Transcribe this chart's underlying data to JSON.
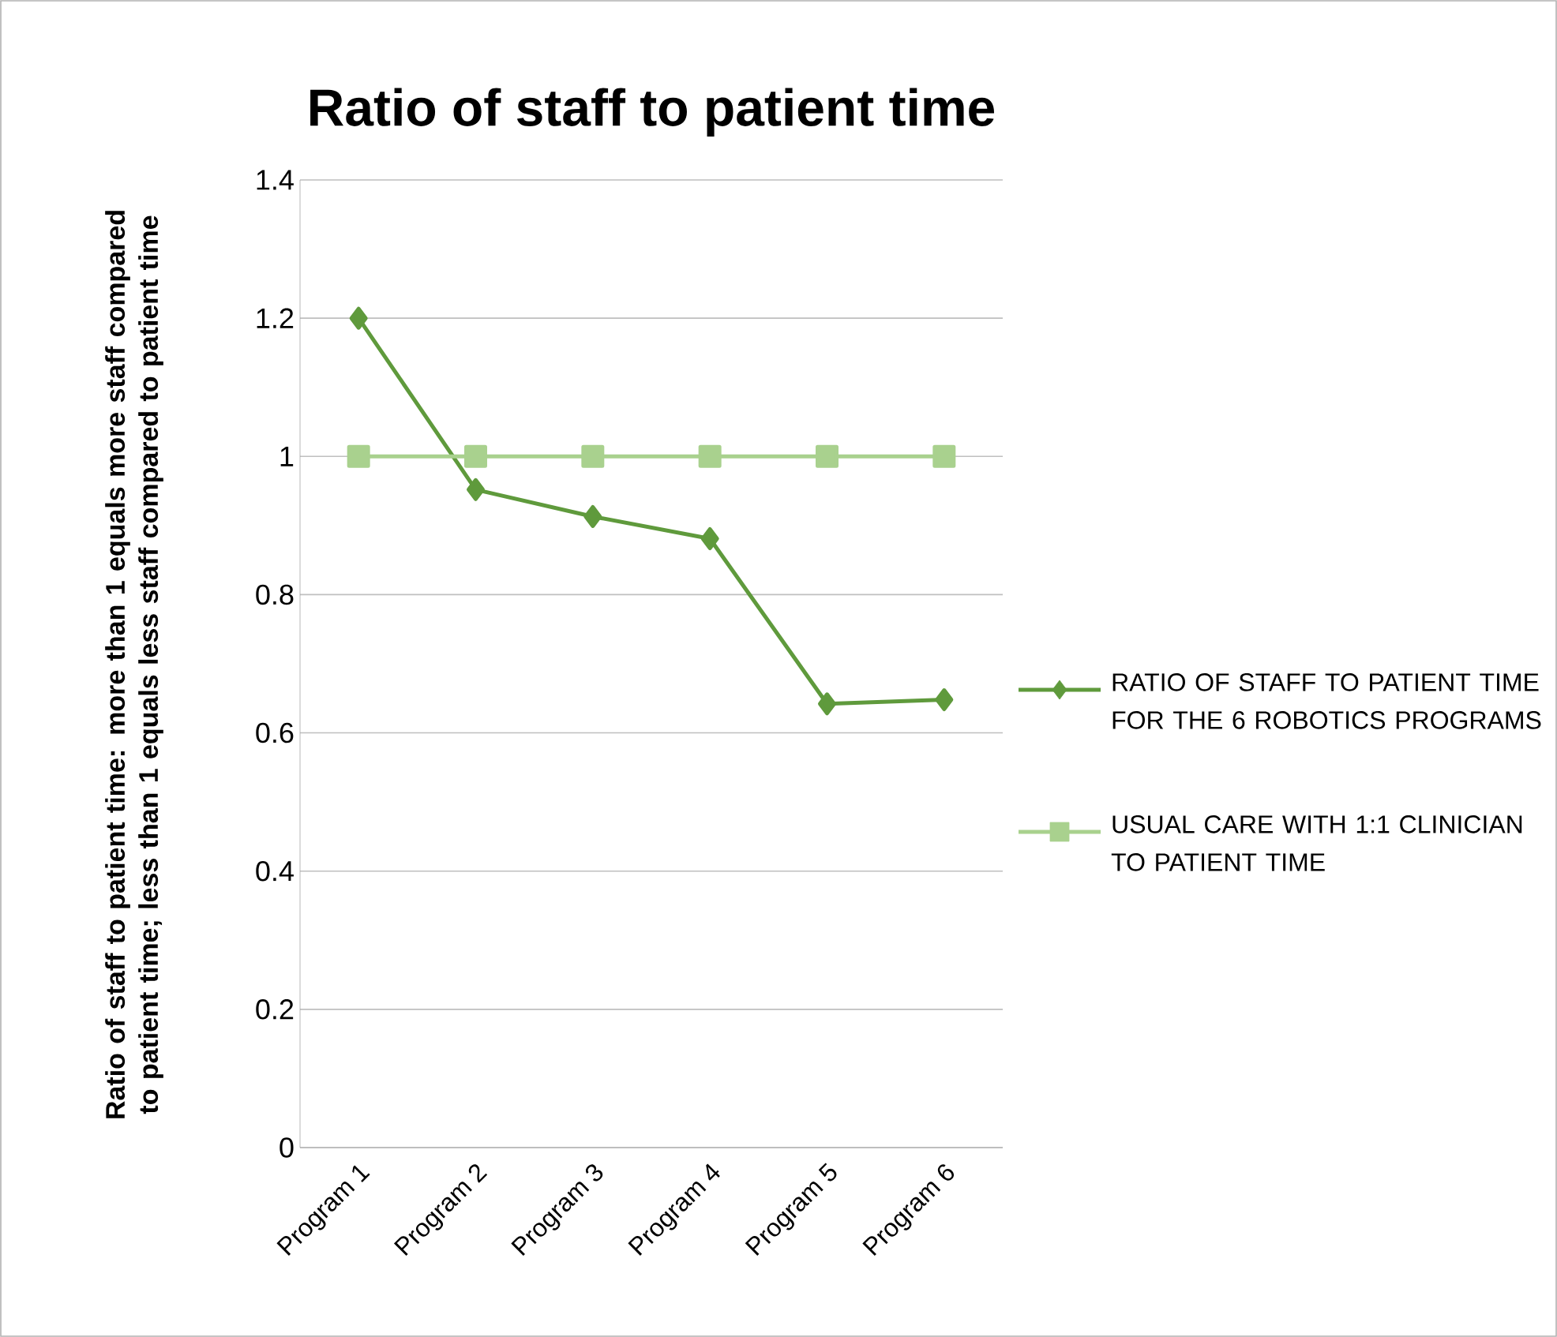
{
  "chart_data": {
    "type": "line",
    "title": "Ratio of staff to patient time",
    "ylabel": "Ratio of staff to patient time: more than 1 equals more staff compared to patient time; less than 1 equals less staff compared to patient time",
    "categories": [
      "Program 1",
      "Program 2",
      "Program 3",
      "Program 4",
      "Program 5",
      "Program 6"
    ],
    "series": [
      {
        "name": "RATIO OF STAFF TO PATIENT TIME FOR THE 6 ROBOTICS PROGRAMS",
        "color": "#5f9a3c",
        "marker": "diamond",
        "values": [
          1.2,
          0.952,
          0.913,
          0.881,
          0.642,
          0.648
        ]
      },
      {
        "name": "USUAL CARE WITH 1:1 CLINICIAN TO PATIENT TIME",
        "color": "#a9d18e",
        "marker": "square",
        "values": [
          1,
          1,
          1,
          1,
          1,
          1
        ]
      }
    ],
    "ylim": [
      0,
      1.4
    ],
    "yticks": [
      0,
      0.2,
      0.4,
      0.6,
      0.8,
      1,
      1.2,
      1.4
    ],
    "grid": "y",
    "legend": "right",
    "line_style": "solid"
  }
}
